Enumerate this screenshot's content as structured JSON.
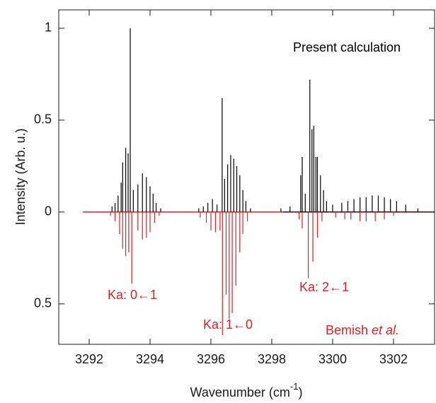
{
  "chart_data": {
    "type": "stem",
    "xlabel": {
      "text": "Wavenumber (cm",
      "sup": "-1",
      "tail": ")"
    },
    "ylabel": "Intensity (Arb. u.)",
    "annotations": [
      {
        "text": "Present calculation",
        "color": "#000000"
      },
      {
        "text": "Ka: 0←1",
        "color": "#e31e24"
      },
      {
        "text": "Ka: 1←0",
        "color": "#e31e24"
      },
      {
        "text": "Ka: 2←1",
        "color": "#e31e24"
      },
      {
        "text": "Bemish ",
        "italic": "et al.",
        "color": "#e31e24"
      }
    ],
    "xlim": [
      3291,
      3303.35
    ],
    "xticks": [
      3292,
      3294,
      3296,
      3298,
      3300,
      3302
    ],
    "ylim": [
      -0.72,
      1.1
    ],
    "yticks": [
      {
        "value": -0.5,
        "label": "0.5"
      },
      0,
      0.5,
      1
    ],
    "series": [
      {
        "color": "#000000",
        "x": [
          3292.75,
          3292.85,
          3292.95,
          3293.05,
          3293.1,
          3293.2,
          3293.28,
          3293.35,
          3293.45,
          3293.6,
          3293.75,
          3293.88,
          3294.0,
          3294.1,
          3294.2,
          3294.35,
          3295.6,
          3295.75,
          3295.9,
          3296.05,
          3296.2,
          3296.37,
          3296.45,
          3296.55,
          3296.65,
          3296.75,
          3296.85,
          3296.95,
          3297.05,
          3297.15,
          3297.3,
          3298.3,
          3298.6,
          3298.95,
          3299.0,
          3299.1,
          3299.25,
          3299.32,
          3299.38,
          3299.45,
          3299.5,
          3299.6,
          3299.7,
          3299.8,
          3300.0,
          3300.3,
          3300.5,
          3300.7,
          3300.9,
          3301.1,
          3301.3,
          3301.5,
          3301.7,
          3301.9,
          3302.1,
          3302.4,
          3302.8
        ],
        "values": [
          0.03,
          0.05,
          0.09,
          0.16,
          0.27,
          0.35,
          0.32,
          1.0,
          0.12,
          0.15,
          0.21,
          0.19,
          0.14,
          0.1,
          0.05,
          0.02,
          0.02,
          0.03,
          0.05,
          0.07,
          0.04,
          0.62,
          0.18,
          0.26,
          0.31,
          0.29,
          0.25,
          0.2,
          0.12,
          0.06,
          0.02,
          0.02,
          0.03,
          0.2,
          0.3,
          0.1,
          0.72,
          0.45,
          0.47,
          0.3,
          0.3,
          0.2,
          0.12,
          0.06,
          0.04,
          0.05,
          0.06,
          0.07,
          0.08,
          0.08,
          0.09,
          0.09,
          0.08,
          0.07,
          0.06,
          0.04,
          0.02
        ]
      },
      {
        "color": "#e31e24",
        "x": [
          3292.7,
          3292.85,
          3293.0,
          3293.1,
          3293.2,
          3293.3,
          3293.4,
          3293.6,
          3293.75,
          3293.88,
          3294.0,
          3294.15,
          3294.3,
          3295.65,
          3295.85,
          3296.0,
          3296.15,
          3296.3,
          3296.38,
          3296.5,
          3296.6,
          3296.7,
          3296.82,
          3296.95,
          3297.05,
          3297.2,
          3298.9,
          3299.0,
          3299.2,
          3299.35,
          3299.5,
          3299.65,
          3300.1,
          3300.4,
          3300.6,
          3300.9,
          3301.1,
          3301.4,
          3301.7,
          3302.0
        ],
        "values": [
          -0.02,
          -0.05,
          -0.12,
          -0.2,
          -0.24,
          -0.22,
          -0.39,
          -0.1,
          -0.15,
          -0.14,
          -0.11,
          -0.06,
          -0.02,
          -0.03,
          -0.06,
          -0.1,
          -0.11,
          -0.1,
          -0.67,
          -0.45,
          -0.58,
          -0.55,
          -0.4,
          -0.22,
          -0.12,
          -0.05,
          -0.04,
          -0.09,
          -0.36,
          -0.27,
          -0.14,
          -0.05,
          -0.03,
          -0.04,
          -0.04,
          -0.05,
          -0.05,
          -0.05,
          -0.04,
          -0.02
        ]
      }
    ]
  }
}
